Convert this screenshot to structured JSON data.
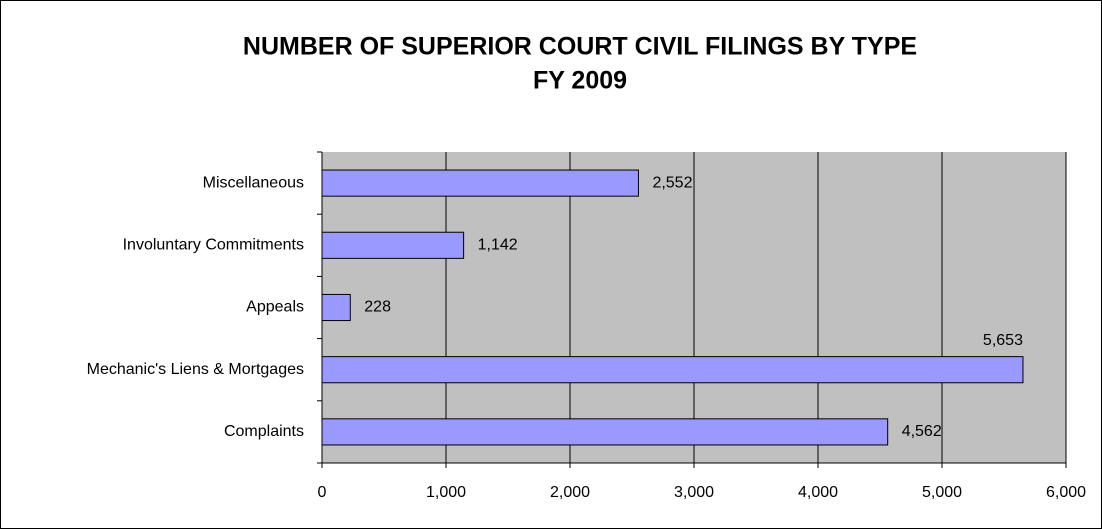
{
  "chart_data": {
    "type": "bar",
    "orientation": "horizontal",
    "title": "NUMBER OF SUPERIOR COURT CIVIL FILINGS BY TYPE",
    "subtitle": "FY 2009",
    "categories": [
      "Miscellaneous",
      "Involuntary Commitments",
      "Appeals",
      "Mechanic's Liens & Mortgages",
      "Complaints"
    ],
    "values": [
      2552,
      1142,
      228,
      5653,
      4562
    ],
    "value_labels": [
      "2,552",
      "1,142",
      "228",
      "5,653",
      "4,562"
    ],
    "color": "#9999ff",
    "xlim": [
      0,
      6000
    ],
    "xticks": [
      0,
      {
        "value": 1000,
        "label": "1,000"
      },
      {
        "value": 2000,
        "label": "2,000"
      },
      {
        "value": 3000,
        "label": "3,000"
      },
      {
        "value": 4000,
        "label": "4,000"
      },
      {
        "value": 5000,
        "label": "5,000"
      },
      {
        "value": 6000,
        "label": "6,000"
      }
    ],
    "grid": true
  }
}
